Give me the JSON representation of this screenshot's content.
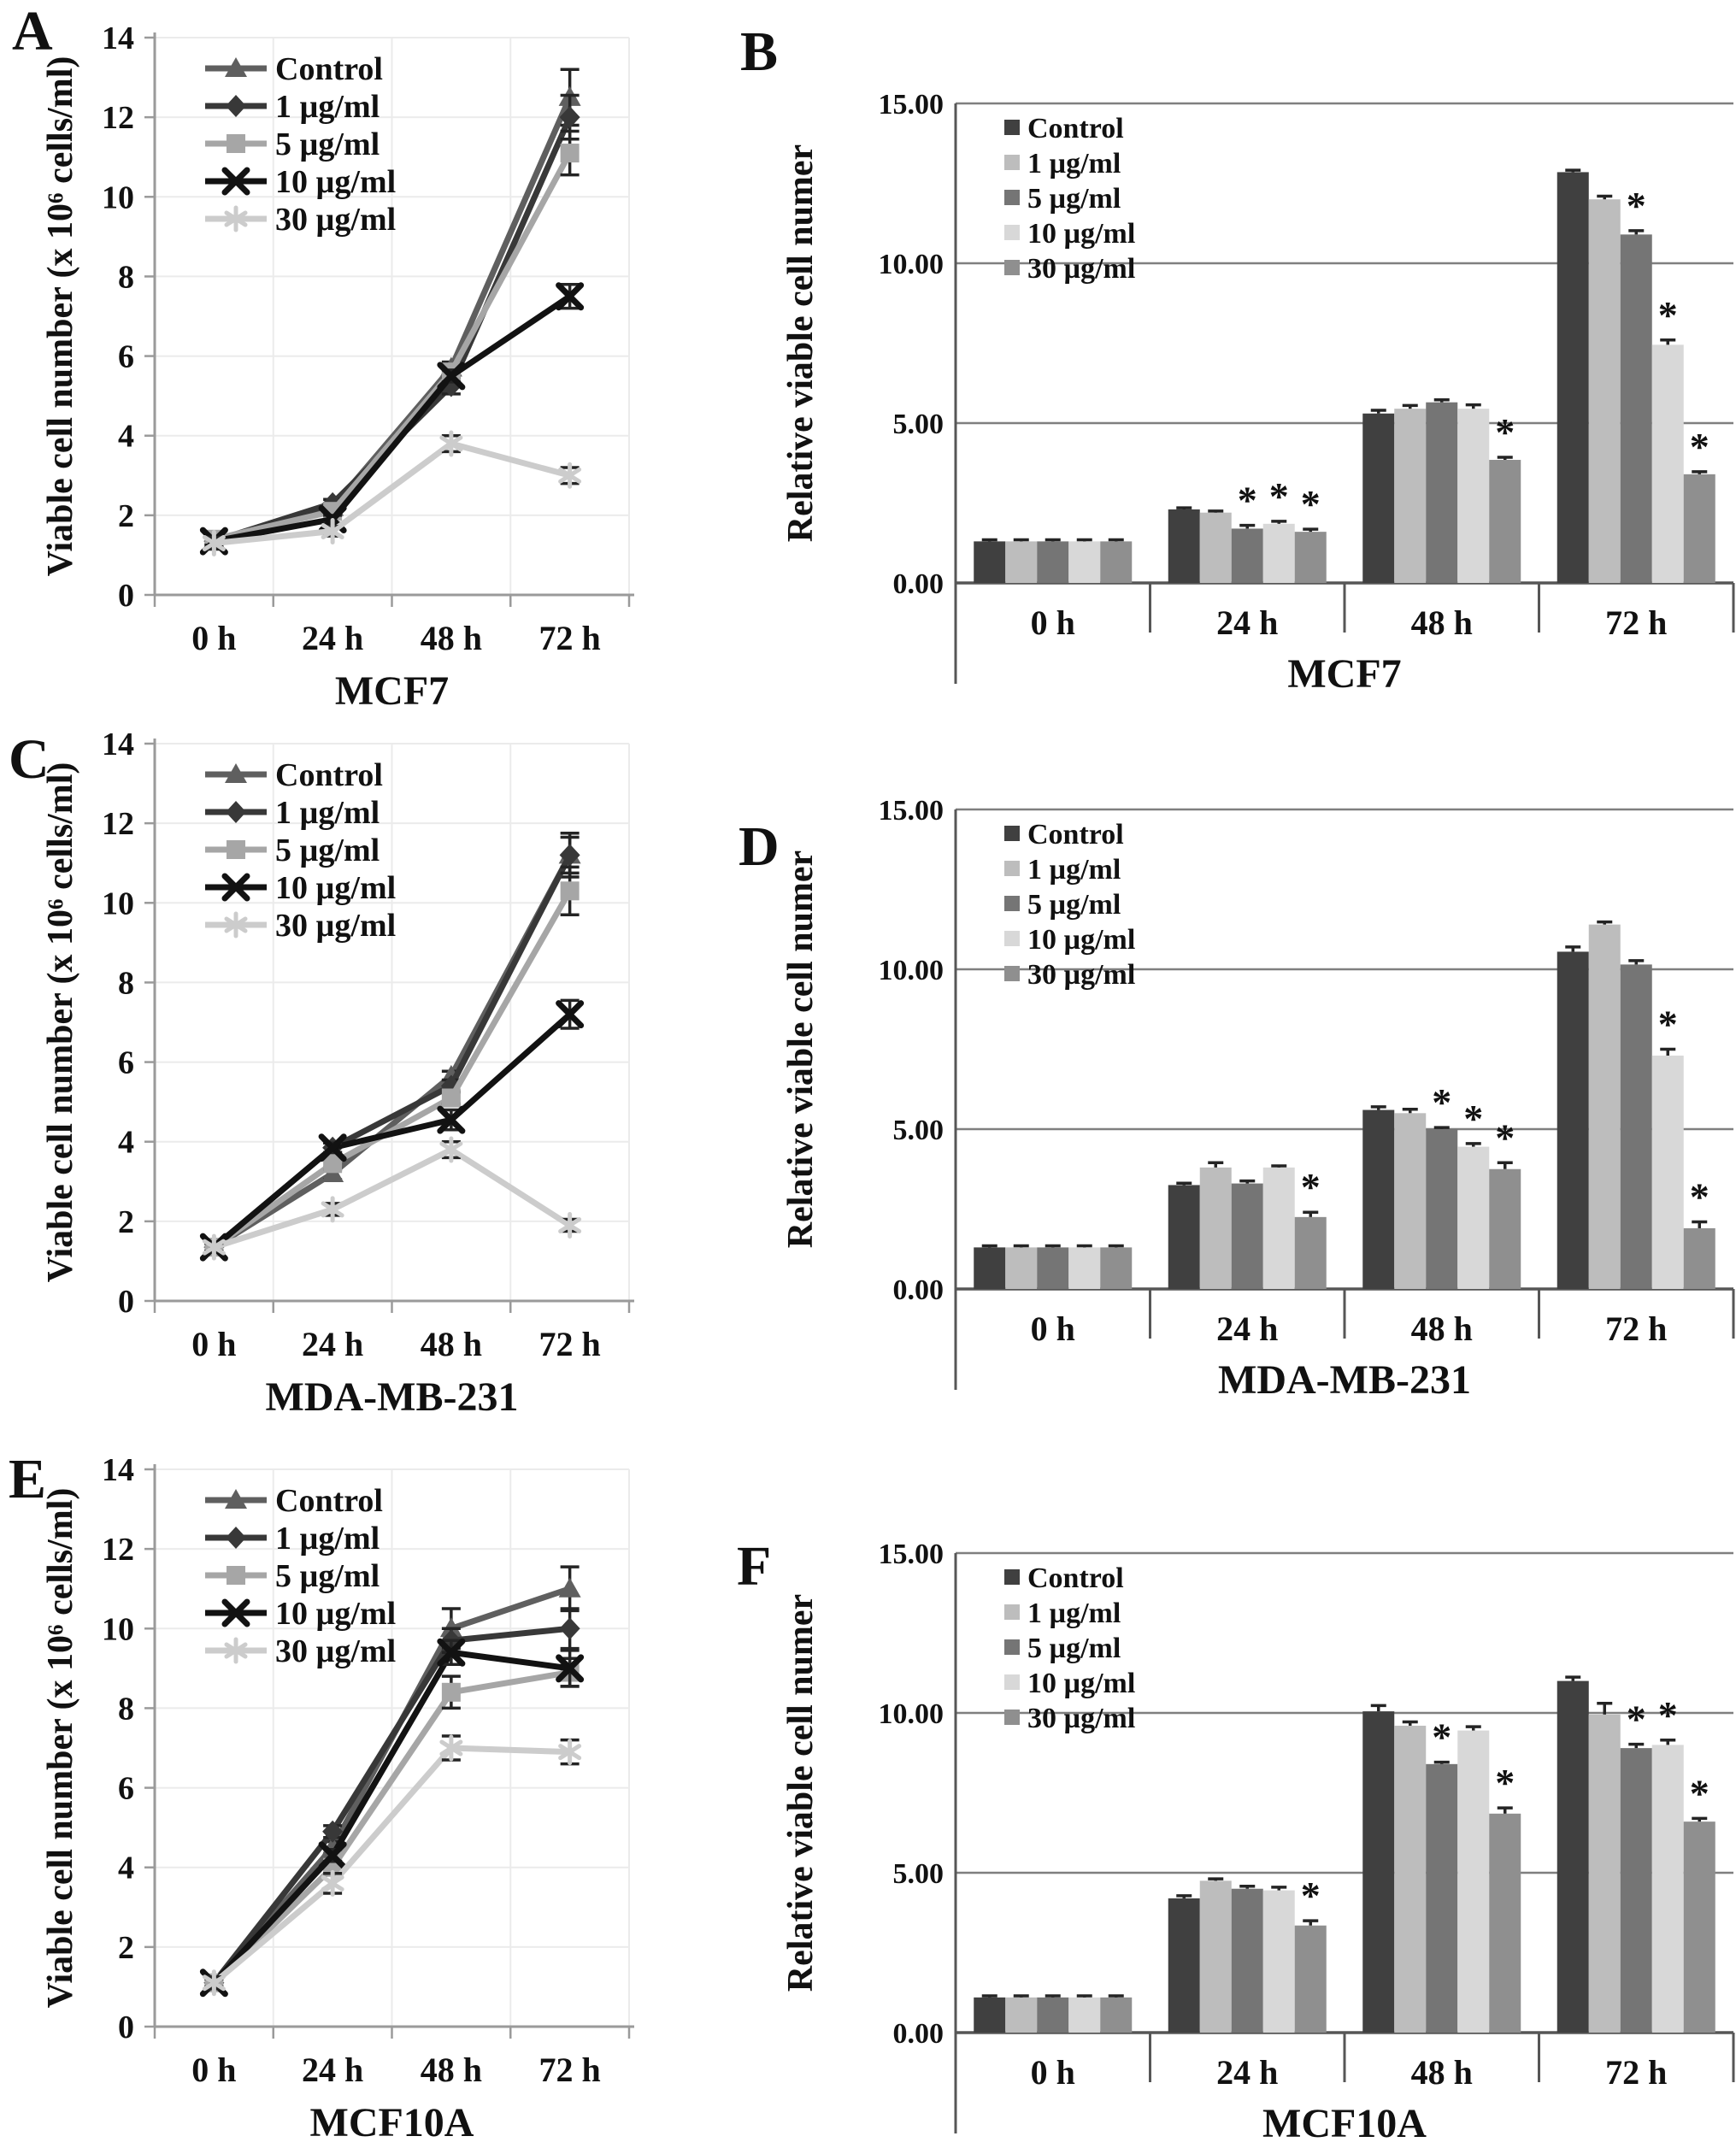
{
  "figure": {
    "background": "#ffffff",
    "legend_labels": [
      "Control",
      "1 µg/ml",
      "5 µg/ml",
      "10 µg/ml",
      "30 µg/ml"
    ],
    "colors": {
      "line_series": [
        "#5f5f5f",
        "#383838",
        "#a6a6a6",
        "#121212",
        "#cccccc"
      ],
      "bar_series": [
        "#404040",
        "#bdbdbd",
        "#757575",
        "#d8d8d8",
        "#8f8f8f"
      ],
      "grid_line_chart": "#ebebeb",
      "grid_bar_chart": "#7f7f7f",
      "axis_line_chart": "#9a9a9a",
      "axis_bar_chart": "#565656",
      "error_bar": "#242424",
      "significance": "#2f2f2f",
      "text": "#111111"
    }
  },
  "chart_data": [
    {
      "panel": "A",
      "type": "line",
      "title": "MCF7",
      "ylabel": "Viable cell number (x 10⁶ cells/ml)",
      "categories": [
        "0 h",
        "24 h",
        "48 h",
        "72 h"
      ],
      "ylim": [
        0,
        14
      ],
      "yticks": [
        "0",
        "2",
        "4",
        "6",
        "8",
        "10",
        "12",
        "14"
      ],
      "grid": true,
      "legend_position": "top-left-inside",
      "series": [
        {
          "name": "Control",
          "marker": "triangle",
          "color": "#5f5f5f",
          "values": [
            1.35,
            2.2,
            5.7,
            12.5
          ],
          "errors": [
            0.15,
            0.1,
            0.15,
            0.7
          ]
        },
        {
          "name": "1 µg/ml",
          "marker": "diamond",
          "color": "#383838",
          "values": [
            1.35,
            2.3,
            5.25,
            12.0
          ],
          "errors": [
            0.1,
            0.1,
            0.2,
            0.55
          ]
        },
        {
          "name": "5 µg/ml",
          "marker": "square",
          "color": "#a6a6a6",
          "values": [
            1.4,
            2.1,
            5.6,
            11.1
          ],
          "errors": [
            0.1,
            0.1,
            0.15,
            0.55
          ]
        },
        {
          "name": "10 µg/ml",
          "marker": "x",
          "color": "#121212",
          "values": [
            1.35,
            1.9,
            5.5,
            7.5
          ],
          "errors": [
            0.1,
            0.1,
            0.15,
            0.3
          ]
        },
        {
          "name": "30 µg/ml",
          "marker": "asterisk",
          "color": "#cccccc",
          "values": [
            1.3,
            1.6,
            3.8,
            3.0
          ],
          "errors": [
            0.15,
            0.12,
            0.2,
            0.2
          ]
        }
      ]
    },
    {
      "panel": "B",
      "type": "bar",
      "title": "MCF7",
      "ylabel": "Relative viable cell numer",
      "categories": [
        "0 h",
        "24 h",
        "48 h",
        "72 h"
      ],
      "ylim": [
        0,
        15
      ],
      "yticks": [
        "0.00",
        "5.00",
        "10.00",
        "15.00"
      ],
      "grid": true,
      "legend_position": "top-left-inside",
      "series": [
        {
          "name": "Control",
          "color": "#404040",
          "values": [
            1.3,
            2.3,
            5.3,
            12.85
          ],
          "errors": [
            0.05,
            0.05,
            0.1,
            0.06
          ],
          "sig": [
            0,
            0,
            0,
            0
          ]
        },
        {
          "name": "1 µg/ml",
          "color": "#bdbdbd",
          "values": [
            1.3,
            2.2,
            5.45,
            12.0
          ],
          "errors": [
            0.05,
            0.05,
            0.1,
            0.1
          ],
          "sig": [
            0,
            0,
            0,
            0
          ]
        },
        {
          "name": "5 µg/ml",
          "color": "#757575",
          "values": [
            1.3,
            1.7,
            5.65,
            10.9
          ],
          "errors": [
            0.05,
            0.1,
            0.08,
            0.12
          ],
          "sig": [
            0,
            1,
            0,
            1
          ]
        },
        {
          "name": "10 µg/ml",
          "color": "#d8d8d8",
          "values": [
            1.3,
            1.85,
            5.45,
            7.45
          ],
          "errors": [
            0.05,
            0.08,
            0.12,
            0.15
          ],
          "sig": [
            0,
            1,
            0,
            1
          ]
        },
        {
          "name": "30 µg/ml",
          "color": "#8f8f8f",
          "values": [
            1.3,
            1.6,
            3.85,
            3.4
          ],
          "errors": [
            0.05,
            0.08,
            0.08,
            0.08
          ],
          "sig": [
            0,
            1,
            1,
            1
          ]
        }
      ]
    },
    {
      "panel": "C",
      "type": "line",
      "title": "MDA-MB-231",
      "ylabel": "Viable cell number (x 10⁶ cells/ml)",
      "categories": [
        "0 h",
        "24 h",
        "48 h",
        "72 h"
      ],
      "ylim": [
        0,
        14
      ],
      "yticks": [
        "0",
        "2",
        "4",
        "6",
        "8",
        "10",
        "12",
        "14"
      ],
      "grid": true,
      "legend_position": "top-left-inside",
      "series": [
        {
          "name": "Control",
          "marker": "triangle",
          "color": "#5f5f5f",
          "values": [
            1.35,
            3.2,
            5.65,
            11.2
          ],
          "errors": [
            0.1,
            0.15,
            0.12,
            0.55
          ]
        },
        {
          "name": "1 µg/ml",
          "marker": "diamond",
          "color": "#383838",
          "values": [
            1.35,
            3.85,
            5.4,
            11.2
          ],
          "errors": [
            0.1,
            0.12,
            0.15,
            0.45
          ]
        },
        {
          "name": "5 µg/ml",
          "marker": "square",
          "color": "#a6a6a6",
          "values": [
            1.35,
            3.45,
            5.1,
            10.3
          ],
          "errors": [
            0.1,
            0.15,
            0.15,
            0.6
          ]
        },
        {
          "name": "10 µg/ml",
          "marker": "x",
          "color": "#121212",
          "values": [
            1.35,
            3.85,
            4.55,
            7.2
          ],
          "errors": [
            0.1,
            0.12,
            0.25,
            0.35
          ]
        },
        {
          "name": "30 µg/ml",
          "marker": "asterisk",
          "color": "#cccccc",
          "values": [
            1.35,
            2.3,
            3.8,
            1.9
          ],
          "errors": [
            0.1,
            0.15,
            0.2,
            0.15
          ]
        }
      ]
    },
    {
      "panel": "D",
      "type": "bar",
      "title": "MDA-MB-231",
      "ylabel": "Relative viable cell numer",
      "categories": [
        "0 h",
        "24 h",
        "48 h",
        "72 h"
      ],
      "ylim": [
        0,
        15
      ],
      "yticks": [
        "0.00",
        "5.00",
        "10.00",
        "15.00"
      ],
      "grid": true,
      "legend_position": "top-left-inside",
      "series": [
        {
          "name": "Control",
          "color": "#404040",
          "values": [
            1.3,
            3.25,
            5.6,
            10.55
          ],
          "errors": [
            0.05,
            0.06,
            0.1,
            0.15
          ],
          "sig": [
            0,
            0,
            0,
            0
          ]
        },
        {
          "name": "1 µg/ml",
          "color": "#bdbdbd",
          "values": [
            1.3,
            3.8,
            5.5,
            11.4
          ],
          "errors": [
            0.05,
            0.15,
            0.12,
            0.08
          ],
          "sig": [
            0,
            0,
            0,
            0
          ]
        },
        {
          "name": "5 µg/ml",
          "color": "#757575",
          "values": [
            1.3,
            3.3,
            5.0,
            10.15
          ],
          "errors": [
            0.05,
            0.08,
            0.05,
            0.12
          ],
          "sig": [
            0,
            0,
            1,
            0
          ]
        },
        {
          "name": "10 µg/ml",
          "color": "#d8d8d8",
          "values": [
            1.3,
            3.8,
            4.45,
            7.3
          ],
          "errors": [
            0.05,
            0.05,
            0.1,
            0.2
          ],
          "sig": [
            0,
            0,
            1,
            1
          ]
        },
        {
          "name": "30 µg/ml",
          "color": "#8f8f8f",
          "values": [
            1.3,
            2.25,
            3.75,
            1.9
          ],
          "errors": [
            0.05,
            0.15,
            0.2,
            0.2
          ],
          "sig": [
            0,
            1,
            1,
            1
          ]
        }
      ]
    },
    {
      "panel": "E",
      "type": "line",
      "title": "MCF10A",
      "ylabel": "Viable cell number (x 10⁶ cells/ml)",
      "categories": [
        "0 h",
        "24 h",
        "48 h",
        "72 h"
      ],
      "ylim": [
        0,
        14
      ],
      "yticks": [
        "0",
        "2",
        "4",
        "6",
        "8",
        "10",
        "12",
        "14"
      ],
      "grid": true,
      "legend_position": "top-left-inside",
      "series": [
        {
          "name": "Control",
          "marker": "triangle",
          "color": "#5f5f5f",
          "values": [
            1.1,
            4.5,
            10.0,
            11.0
          ],
          "errors": [
            0.12,
            0.15,
            0.5,
            0.55
          ]
        },
        {
          "name": "1 µg/ml",
          "marker": "diamond",
          "color": "#383838",
          "values": [
            1.1,
            4.9,
            9.7,
            10.0
          ],
          "errors": [
            0.1,
            0.15,
            0.3,
            0.5
          ]
        },
        {
          "name": "5 µg/ml",
          "marker": "square",
          "color": "#a6a6a6",
          "values": [
            1.1,
            4.0,
            8.4,
            8.9
          ],
          "errors": [
            0.1,
            0.15,
            0.4,
            0.35
          ]
        },
        {
          "name": "10 µg/ml",
          "marker": "x",
          "color": "#121212",
          "values": [
            1.1,
            4.3,
            9.4,
            9.0
          ],
          "errors": [
            0.1,
            0.15,
            0.3,
            0.45
          ]
        },
        {
          "name": "30 µg/ml",
          "marker": "asterisk",
          "color": "#cccccc",
          "values": [
            1.1,
            3.6,
            7.0,
            6.9
          ],
          "errors": [
            0.15,
            0.25,
            0.3,
            0.3
          ]
        }
      ]
    },
    {
      "panel": "F",
      "type": "bar",
      "title": "MCF10A",
      "ylabel": "Relative viable cell numer",
      "categories": [
        "0 h",
        "24 h",
        "48 h",
        "72 h"
      ],
      "ylim": [
        0,
        15
      ],
      "yticks": [
        "0.00",
        "5.00",
        "10.00",
        "15.00"
      ],
      "grid": true,
      "legend_position": "top-left-inside",
      "series": [
        {
          "name": "Control",
          "color": "#404040",
          "values": [
            1.1,
            4.2,
            10.05,
            11.0
          ],
          "errors": [
            0.05,
            0.08,
            0.18,
            0.12
          ],
          "sig": [
            0,
            0,
            0,
            0
          ]
        },
        {
          "name": "1 µg/ml",
          "color": "#bdbdbd",
          "values": [
            1.1,
            4.75,
            9.6,
            9.95
          ],
          "errors": [
            0.05,
            0.06,
            0.12,
            0.35
          ],
          "sig": [
            0,
            0,
            0,
            0
          ]
        },
        {
          "name": "5 µg/ml",
          "color": "#757575",
          "values": [
            1.1,
            4.5,
            8.4,
            8.9
          ],
          "errors": [
            0.05,
            0.08,
            0.06,
            0.12
          ],
          "sig": [
            0,
            0,
            1,
            1
          ]
        },
        {
          "name": "10 µg/ml",
          "color": "#d8d8d8",
          "values": [
            1.1,
            4.45,
            9.45,
            9.0
          ],
          "errors": [
            0.05,
            0.1,
            0.12,
            0.15
          ],
          "sig": [
            0,
            0,
            0,
            1
          ]
        },
        {
          "name": "30 µg/ml",
          "color": "#8f8f8f",
          "values": [
            1.1,
            3.35,
            6.85,
            6.6
          ],
          "errors": [
            0.05,
            0.15,
            0.18,
            0.1
          ],
          "sig": [
            0,
            1,
            1,
            1
          ]
        }
      ]
    }
  ]
}
